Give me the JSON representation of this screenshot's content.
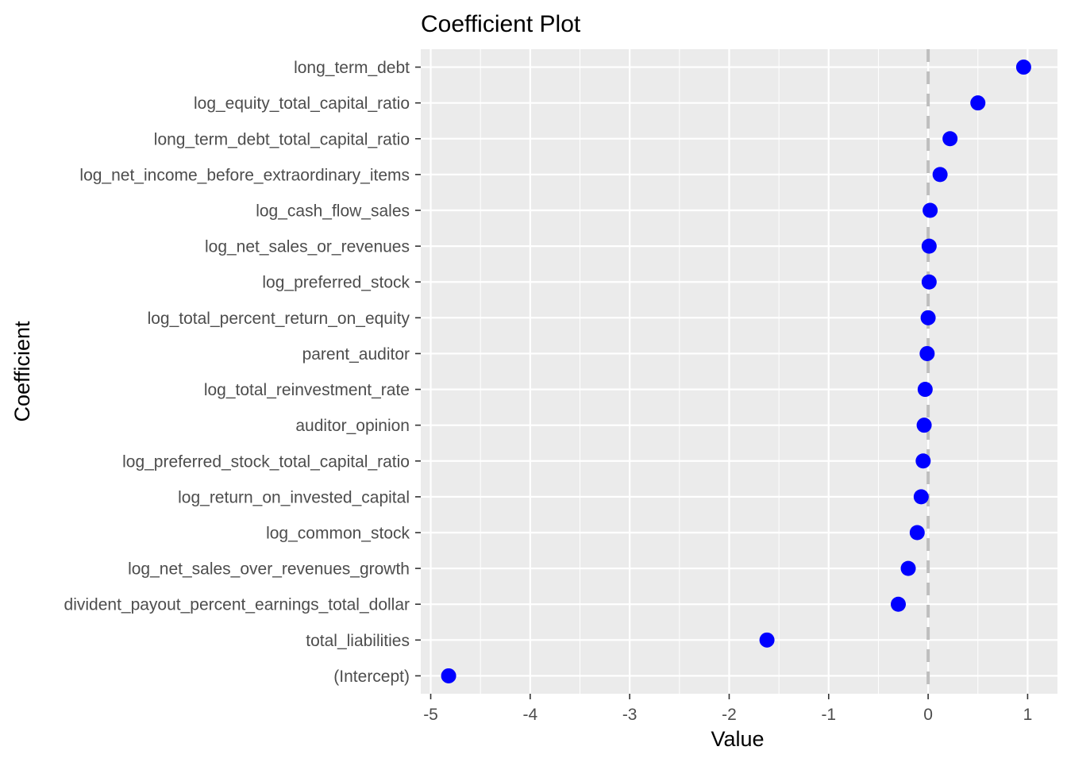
{
  "chart_data": {
    "type": "scatter",
    "title": "Coefficient Plot",
    "xlabel": "Value",
    "ylabel": "Coefficient",
    "xlim": [
      -5.1,
      1.3
    ],
    "x_ticks": [
      -5,
      -4,
      -3,
      -2,
      -1,
      0,
      1
    ],
    "x_tick_labels": [
      "-5",
      "-4",
      "-3",
      "-2",
      "-1",
      "0",
      "1"
    ],
    "reference_line": {
      "x": 0,
      "style": "dashed",
      "color": "#bebebe"
    },
    "point_color": "#0000ff",
    "panel_background": "#ebebeb",
    "grid": true,
    "legend": "none",
    "points": [
      {
        "label": "long_term_debt",
        "value": 0.96
      },
      {
        "label": "log_equity_total_capital_ratio",
        "value": 0.5
      },
      {
        "label": "long_term_debt_total_capital_ratio",
        "value": 0.22
      },
      {
        "label": "log_net_income_before_extraordinary_items",
        "value": 0.12
      },
      {
        "label": "log_cash_flow_sales",
        "value": 0.02
      },
      {
        "label": "log_net_sales_or_revenues",
        "value": 0.01
      },
      {
        "label": "log_preferred_stock",
        "value": 0.01
      },
      {
        "label": "log_total_percent_return_on_equity",
        "value": 0.0
      },
      {
        "label": "parent_auditor",
        "value": -0.01
      },
      {
        "label": "log_total_reinvestment_rate",
        "value": -0.03
      },
      {
        "label": "auditor_opinion",
        "value": -0.04
      },
      {
        "label": "log_preferred_stock_total_capital_ratio",
        "value": -0.05
      },
      {
        "label": "log_return_on_invested_capital",
        "value": -0.07
      },
      {
        "label": "log_common_stock",
        "value": -0.11
      },
      {
        "label": "log_net_sales_over_revenues_growth",
        "value": -0.2
      },
      {
        "label": "divident_payout_percent_earnings_total_dollar",
        "value": -0.3
      },
      {
        "label": "total_liabilities",
        "value": -1.62
      },
      {
        "label": "(Intercept)",
        "value": -4.82
      }
    ]
  }
}
